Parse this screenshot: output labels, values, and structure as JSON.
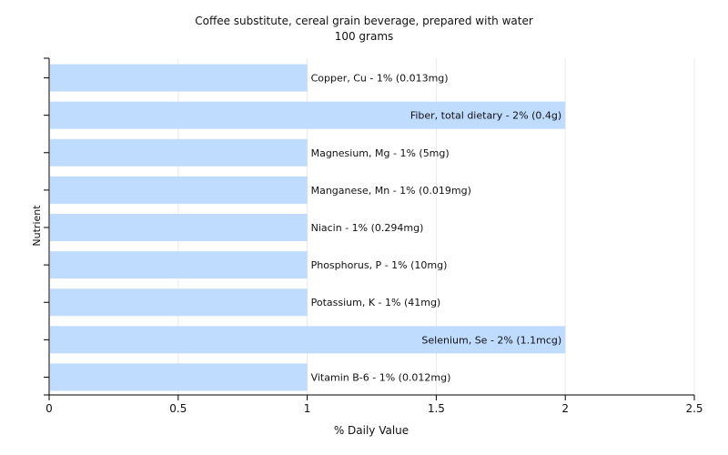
{
  "chart_data": {
    "type": "bar",
    "orientation": "horizontal",
    "title": "Coffee substitute, cereal grain beverage, prepared with water",
    "subtitle": "100 grams",
    "xlabel": "% Daily Value",
    "ylabel": "Nutrient",
    "xlim": [
      0,
      2.5
    ],
    "xticks": [
      "0",
      "0.5",
      "1",
      "1.5",
      "2",
      "2.5"
    ],
    "grid": true,
    "bar_color": "#bfdcff",
    "categories": [
      "Copper, Cu",
      "Fiber, total dietary",
      "Magnesium, Mg",
      "Manganese, Mn",
      "Niacin",
      "Phosphorus, P",
      "Potassium, K",
      "Selenium, Se",
      "Vitamin B-6"
    ],
    "values": [
      1,
      2,
      1,
      1,
      1,
      1,
      1,
      2,
      1
    ],
    "labels": [
      "Copper, Cu - 1% (0.013mg)",
      "Fiber, total dietary - 2% (0.4g)",
      "Magnesium, Mg - 1% (5mg)",
      "Manganese, Mn - 1% (0.019mg)",
      "Niacin - 1% (0.294mg)",
      "Phosphorus, P - 1% (10mg)",
      "Potassium, K - 1% (41mg)",
      "Selenium, Se - 2% (1.1mcg)",
      "Vitamin B-6 - 1% (0.012mg)"
    ]
  }
}
